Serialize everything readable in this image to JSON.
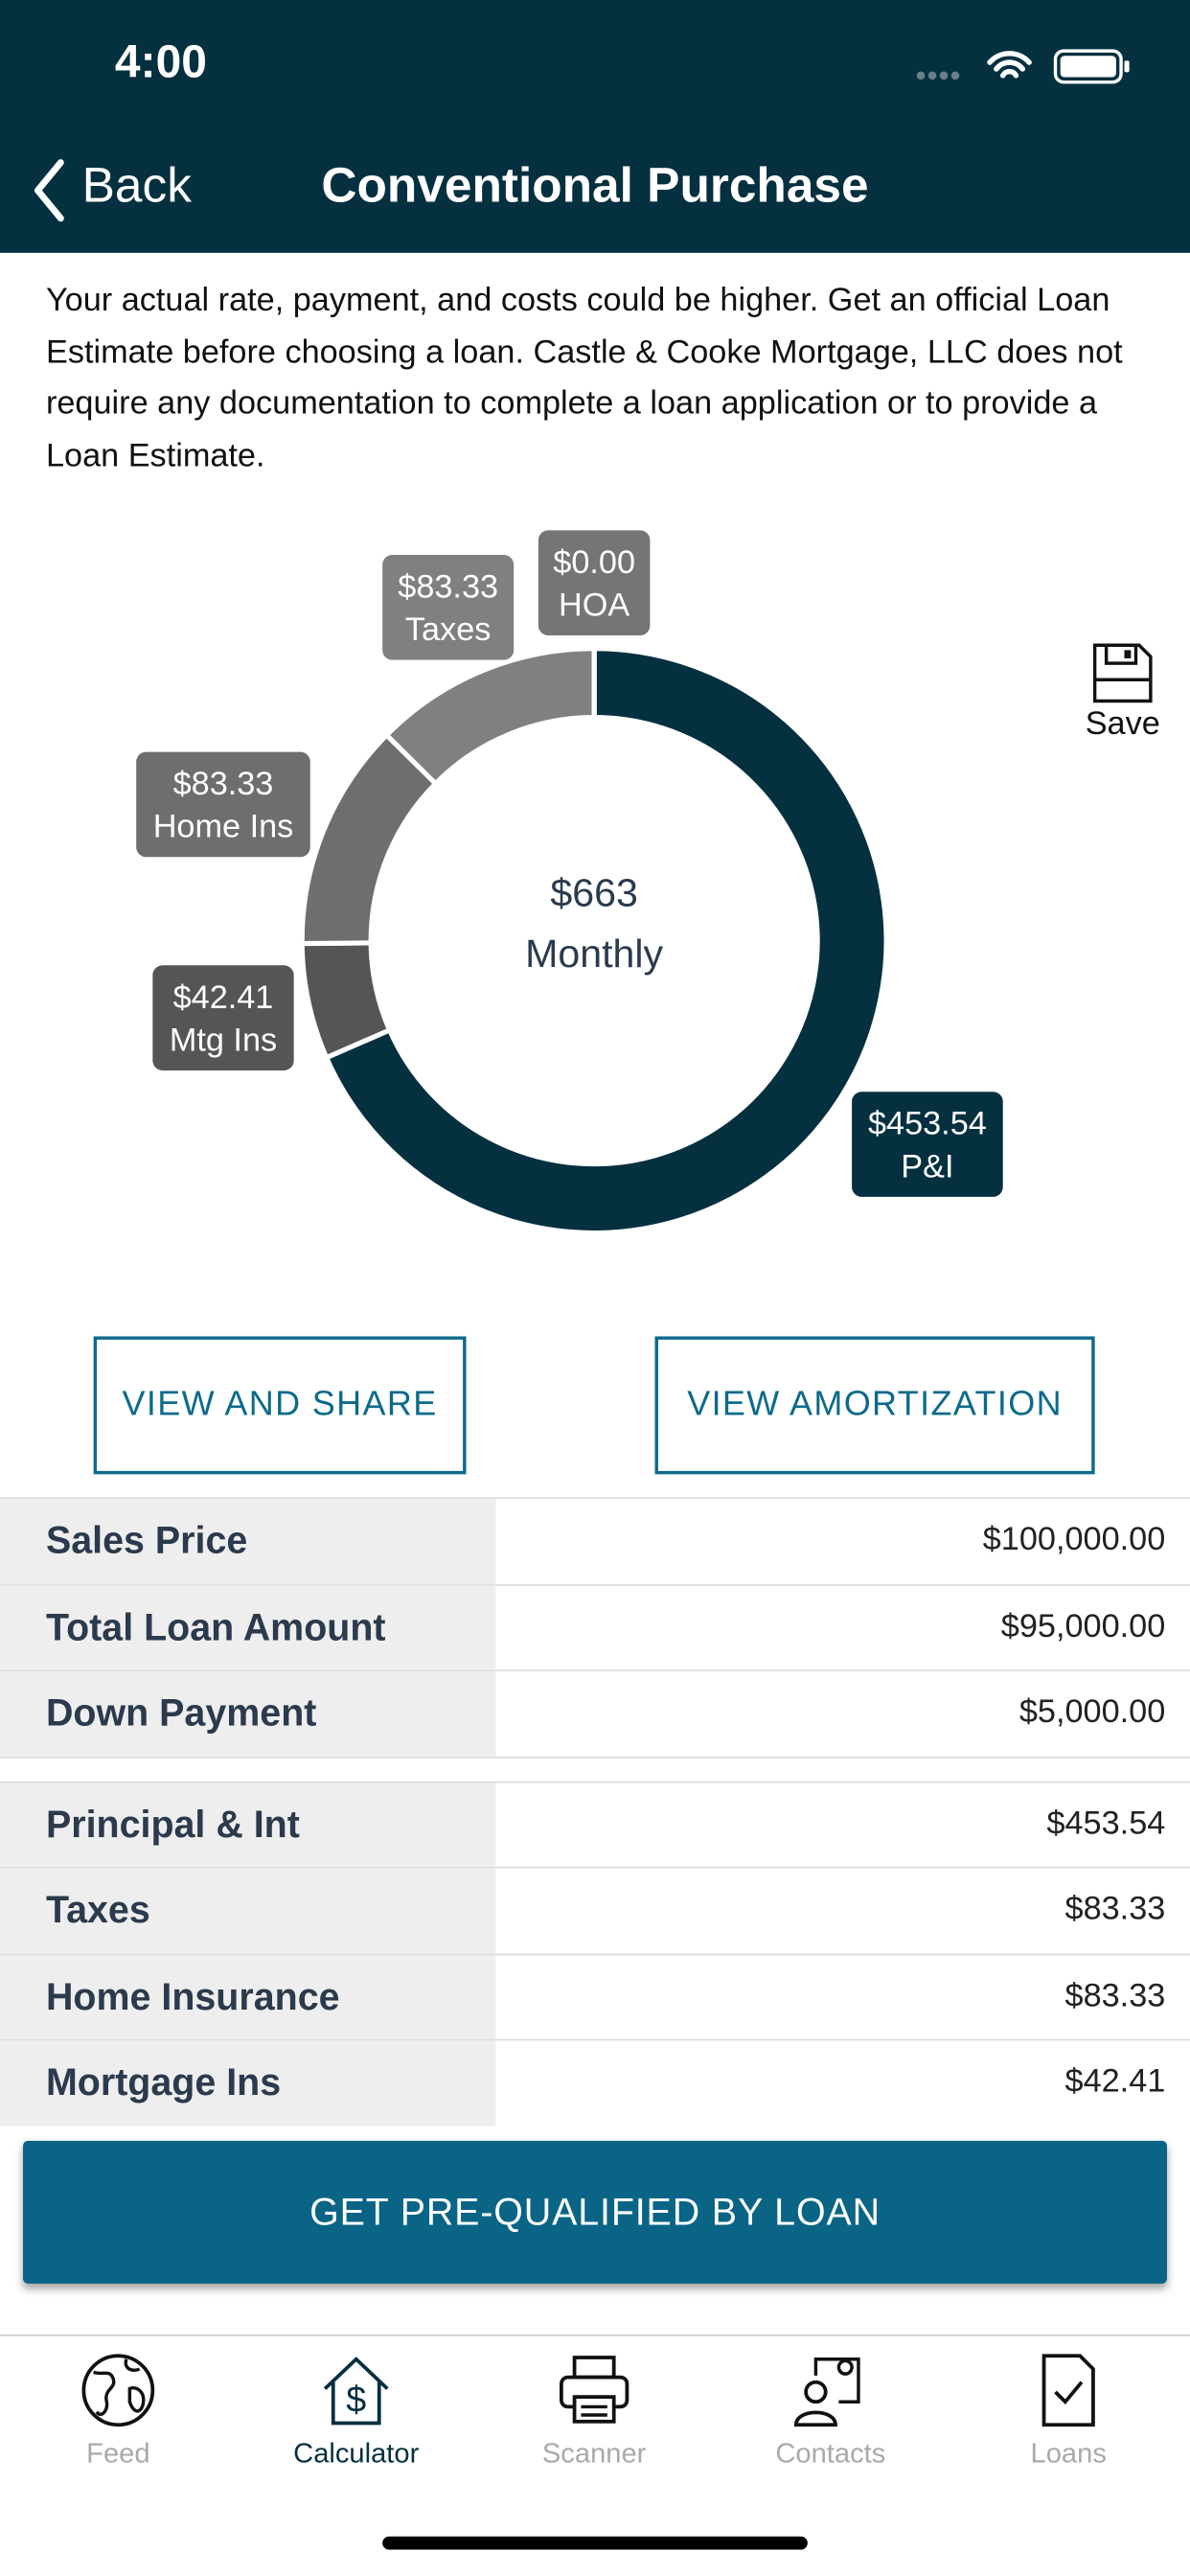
{
  "status_bar": {
    "time": "4:00"
  },
  "nav": {
    "back": "Back",
    "title": "Conventional Purchase"
  },
  "disclaimer": "Your actual rate, payment, and costs could be higher. Get an official Loan Estimate before choosing a loan. Castle & Cooke Mortgage, LLC does not require any documentation to complete a loan application or to provide a Loan Estimate.",
  "chart_data": {
    "type": "donut",
    "center_value": "$663",
    "center_label": "Monthly",
    "categories": [
      "P&I",
      "Mtg Ins",
      "Home Ins",
      "Taxes",
      "HOA"
    ],
    "values": [
      453.54,
      42.41,
      83.33,
      83.33,
      0
    ],
    "value_labels": [
      "$453.54",
      "$42.41",
      "$83.33",
      "$83.33",
      "$0.00"
    ],
    "colors": [
      "#05303f",
      "#555555",
      "#6e6e6e",
      "#808080",
      "#757575"
    ]
  },
  "save": "Save",
  "buttons": [
    "VIEW AND SHARE",
    "VIEW AMORTIZATION"
  ],
  "table": {
    "groups": [
      [
        [
          "Sales Price",
          "$100,000.00"
        ],
        [
          "Total Loan Amount",
          "$95,000.00"
        ],
        [
          "Down Payment",
          "$5,000.00"
        ]
      ],
      [
        [
          "Principal & Int",
          "$453.54"
        ],
        [
          "Taxes",
          "$83.33"
        ],
        [
          "Home Insurance",
          "$83.33"
        ],
        [
          "Mortgage Ins",
          "$42.41"
        ]
      ]
    ]
  },
  "cta": "GET PRE-QUALIFIED BY LOAN",
  "tabs": [
    {
      "label": "Feed",
      "active": false
    },
    {
      "label": "Calculator",
      "active": true
    },
    {
      "label": "Scanner",
      "active": false
    },
    {
      "label": "Contacts",
      "active": false
    },
    {
      "label": "Loans",
      "active": false
    }
  ]
}
